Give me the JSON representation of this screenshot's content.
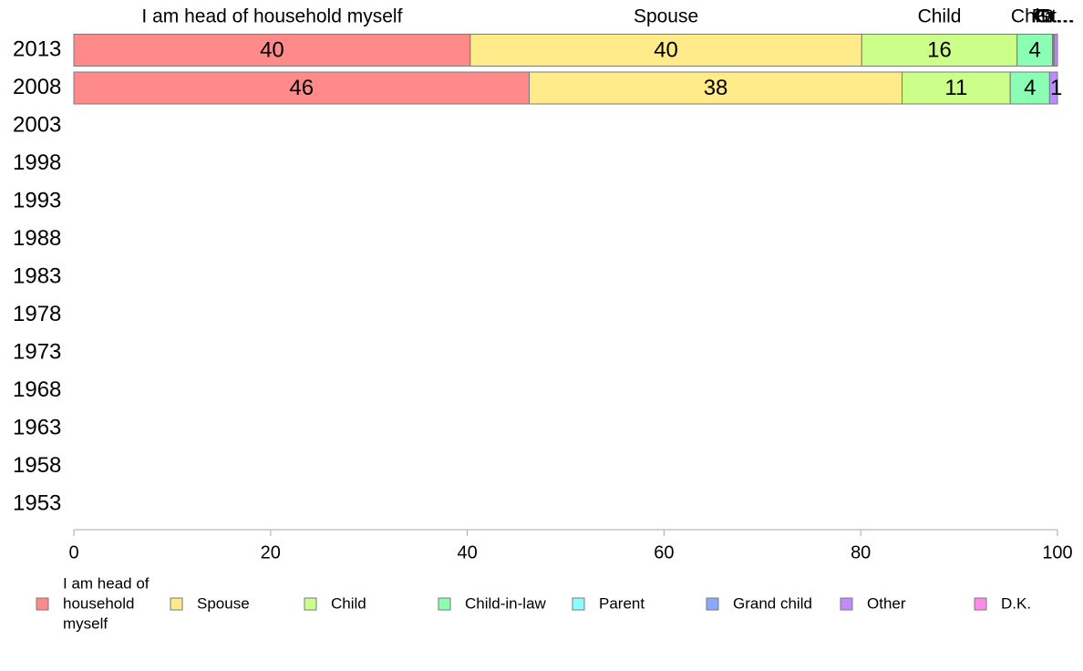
{
  "chart_data": {
    "type": "bar",
    "orientation": "horizontal",
    "stacked": true,
    "categories": [
      "2013",
      "2008",
      "2003",
      "1998",
      "1993",
      "1988",
      "1983",
      "1978",
      "1973",
      "1968",
      "1963",
      "1958",
      "1953"
    ],
    "series": [
      {
        "name": "I am head of household myself",
        "color": "#ff8a8a",
        "values": [
          40.3,
          46.3,
          null,
          null,
          null,
          null,
          null,
          null,
          null,
          null,
          null,
          null,
          null
        ]
      },
      {
        "name": "Spouse",
        "color": "#ffeb8a",
        "values": [
          39.8,
          37.9,
          null,
          null,
          null,
          null,
          null,
          null,
          null,
          null,
          null,
          null,
          null
        ]
      },
      {
        "name": "Child",
        "color": "#ccff8a",
        "values": [
          15.8,
          11.0,
          null,
          null,
          null,
          null,
          null,
          null,
          null,
          null,
          null,
          null,
          null
        ]
      },
      {
        "name": "Child-in-law",
        "color": "#8affb4",
        "values": [
          3.6,
          4.0,
          null,
          null,
          null,
          null,
          null,
          null,
          null,
          null,
          null,
          null,
          null
        ]
      },
      {
        "name": "Parent",
        "color": "#8affff",
        "values": [
          0.1,
          0.0,
          null,
          null,
          null,
          null,
          null,
          null,
          null,
          null,
          null,
          null,
          null
        ]
      },
      {
        "name": "Grand child",
        "color": "#8aa8ff",
        "values": [
          0.1,
          0.0,
          null,
          null,
          null,
          null,
          null,
          null,
          null,
          null,
          null,
          null,
          null
        ]
      },
      {
        "name": "Other",
        "color": "#c08aff",
        "values": [
          0.3,
          0.8,
          null,
          null,
          null,
          null,
          null,
          null,
          null,
          null,
          null,
          null,
          null
        ]
      },
      {
        "name": "D.K.",
        "color": "#ff8ae8",
        "values": [
          0.0,
          0.0,
          null,
          null,
          null,
          null,
          null,
          null,
          null,
          null,
          null,
          null,
          null
        ]
      }
    ],
    "data_labels": [
      [
        "40",
        "40",
        "16",
        "4",
        "",
        "",
        "",
        ""
      ],
      [
        "46",
        "38",
        "11",
        "4",
        "",
        "",
        "1",
        ""
      ]
    ],
    "top_labels": [
      "I am head of household myself",
      "Spouse",
      "Child",
      "Chi…",
      "Pa…",
      "Gr…",
      "Ot…",
      "D…"
    ],
    "legend_labels": [
      [
        "I am head of",
        "household",
        "myself"
      ],
      [
        "Spouse"
      ],
      [
        "Child"
      ],
      [
        "Child-in-law"
      ],
      [
        "Parent"
      ],
      [
        "Grand child"
      ],
      [
        "Other"
      ],
      [
        "D.K."
      ]
    ],
    "xlim": [
      0,
      100
    ],
    "xticks": [
      0,
      20,
      40,
      60,
      80,
      100
    ],
    "legend_position": "bottom",
    "grid": false
  }
}
